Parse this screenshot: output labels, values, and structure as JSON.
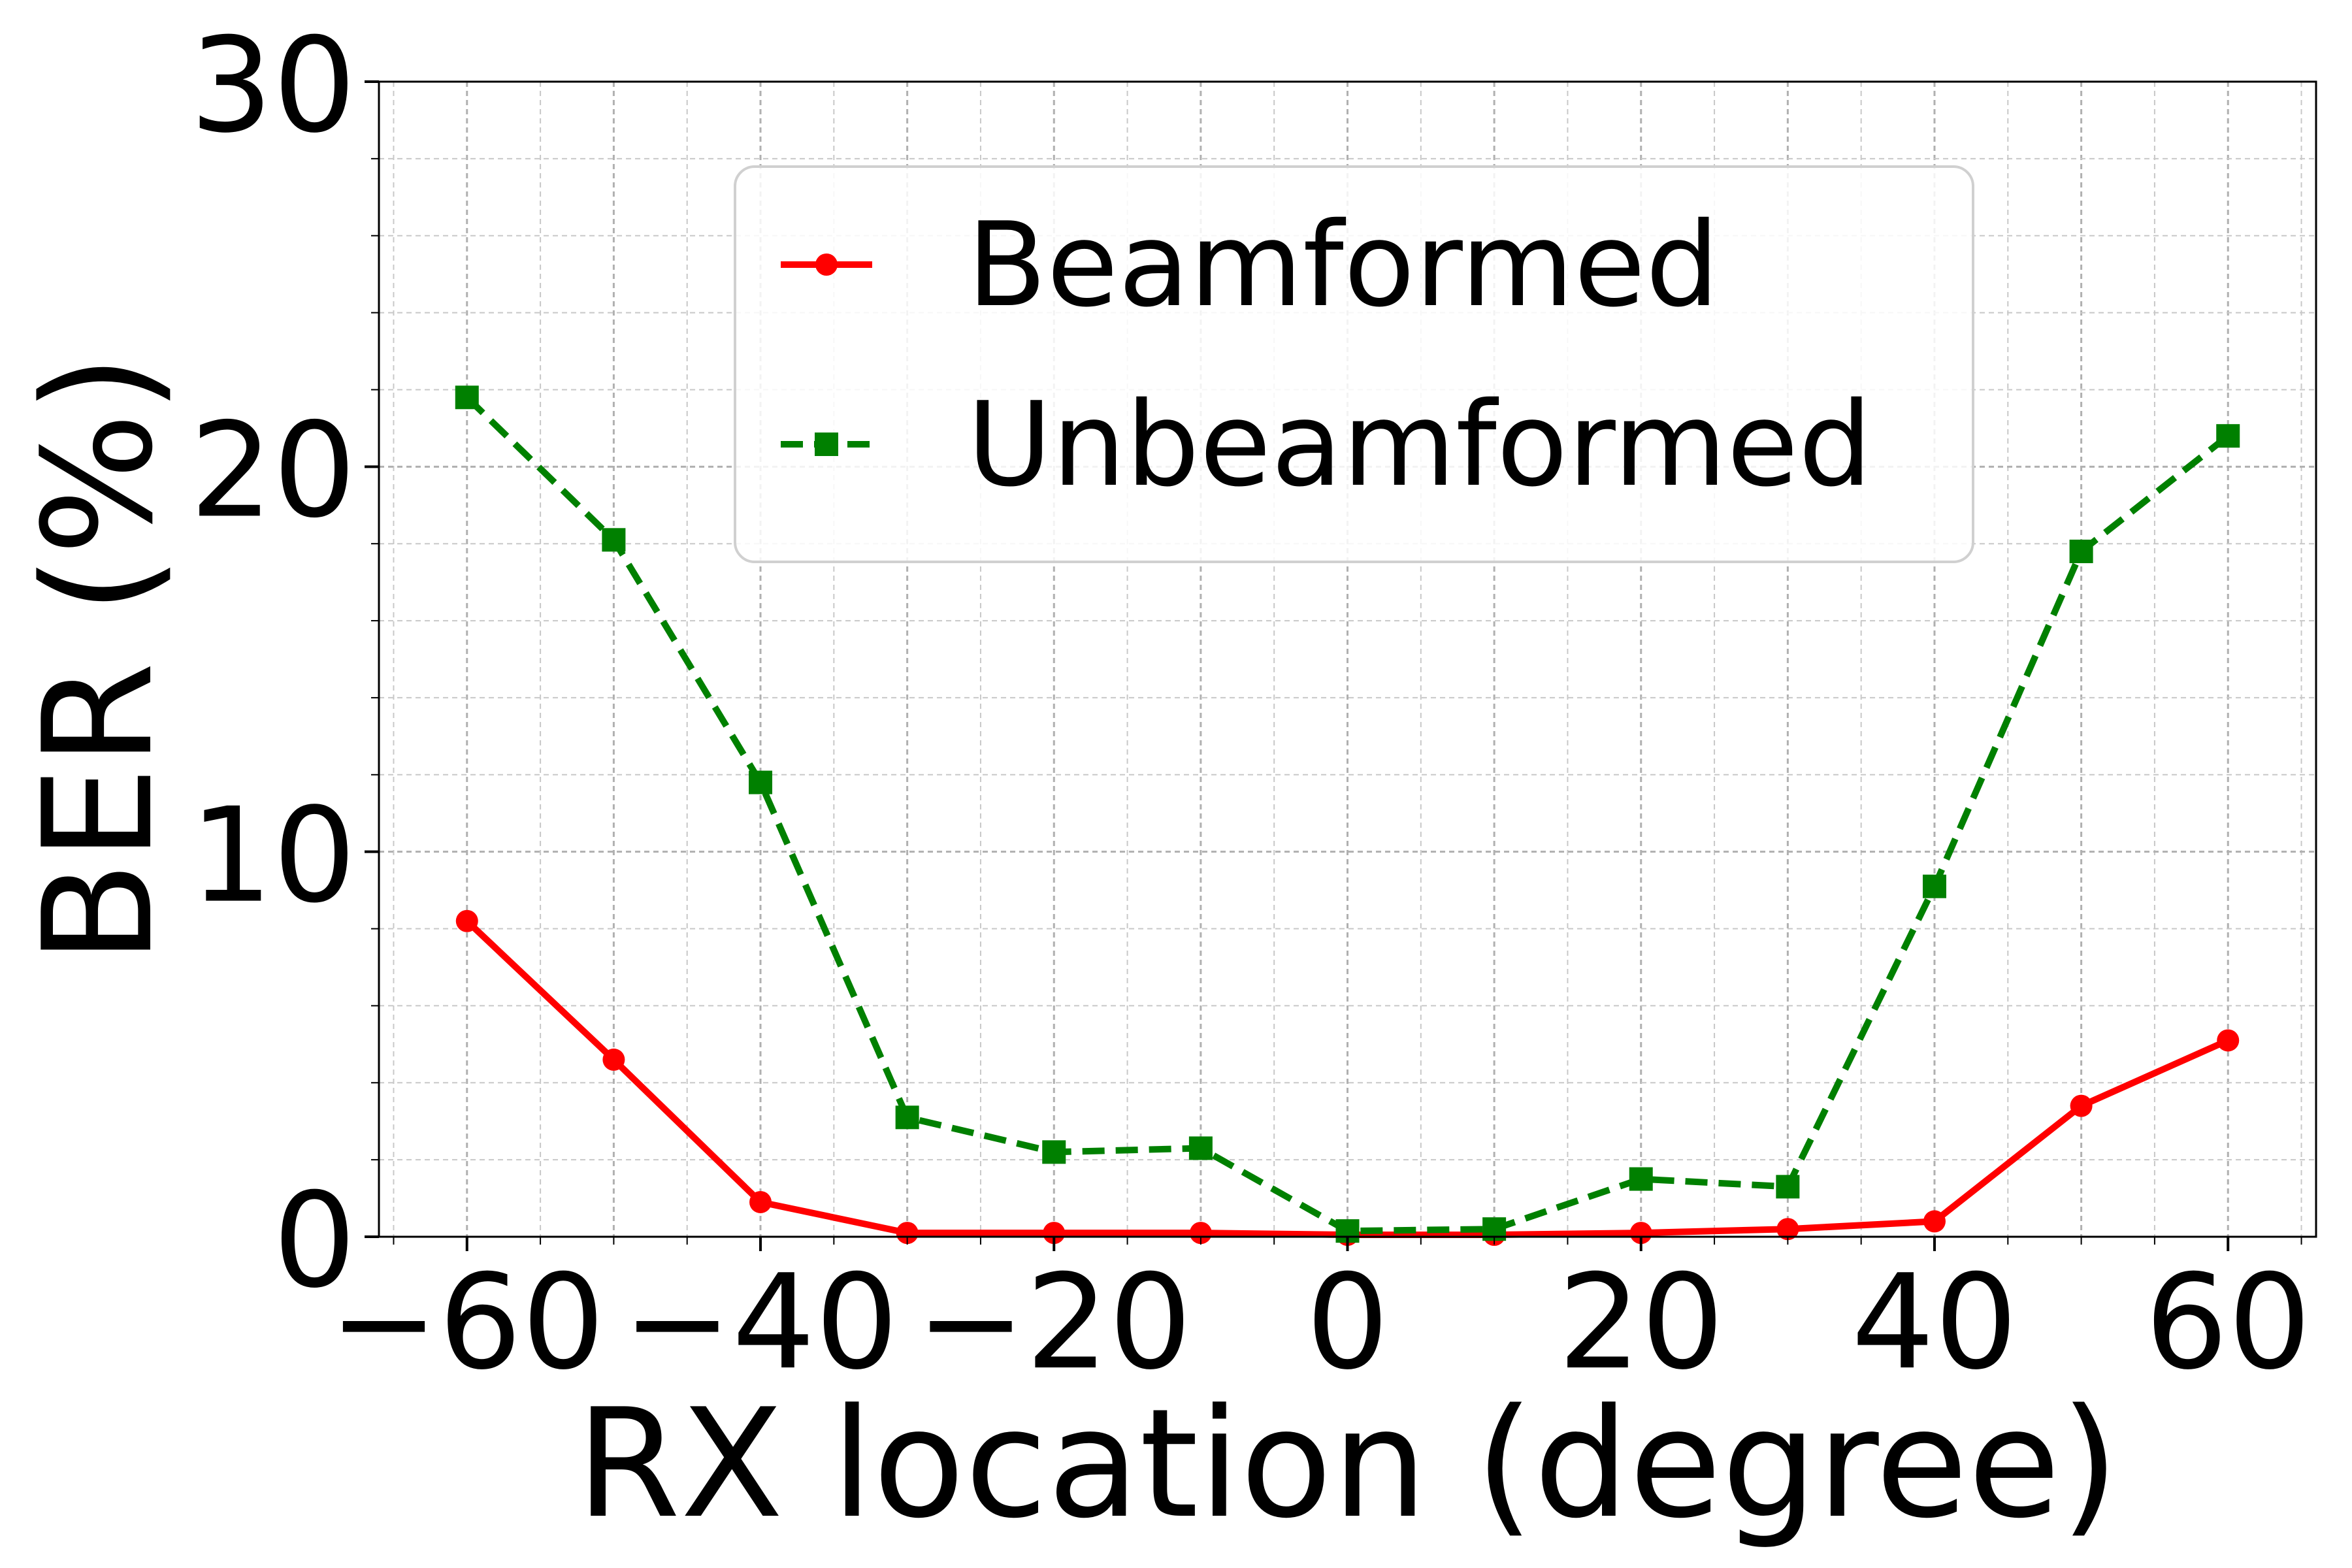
{
  "chart_data": {
    "type": "line",
    "title": "",
    "xlabel": "RX location (degree)",
    "ylabel": "BER (%)",
    "xlim": [
      -66,
      66
    ],
    "ylim": [
      0,
      30
    ],
    "x_ticks": [
      -60,
      -40,
      -20,
      0,
      20,
      40,
      60
    ],
    "x_tick_labels": [
      "−60",
      "−40",
      "−20",
      "0",
      "20",
      "40",
      "60"
    ],
    "y_ticks": [
      0,
      10,
      20,
      30
    ],
    "y_tick_labels": [
      "0",
      "10",
      "20",
      "30"
    ],
    "grid": true,
    "minor_grid": true,
    "legend_position": "upper-center",
    "x": [
      -60,
      -50,
      -40,
      -30,
      -20,
      -10,
      0,
      10,
      20,
      30,
      40,
      50,
      60
    ],
    "series": [
      {
        "name": "Beamformed",
        "color": "#ff0000",
        "line_style": "solid",
        "marker": "circle",
        "values": [
          8.2,
          4.6,
          0.9,
          0.1,
          0.1,
          0.1,
          0.05,
          0.05,
          0.1,
          0.2,
          0.4,
          3.4,
          5.1
        ]
      },
      {
        "name": "Unbeamformed",
        "color": "#008000",
        "line_style": "dashed",
        "marker": "square",
        "values": [
          21.8,
          18.1,
          11.8,
          3.1,
          2.2,
          2.3,
          0.15,
          0.2,
          1.5,
          1.3,
          9.1,
          17.8,
          20.8
        ]
      }
    ]
  }
}
